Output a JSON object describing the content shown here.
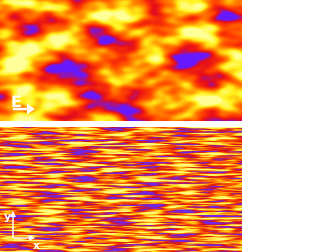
{
  "top_panel": {
    "label": "E"
  },
  "bottom_panel": {
    "axis_y": "y",
    "axis_x": "x"
  }
}
